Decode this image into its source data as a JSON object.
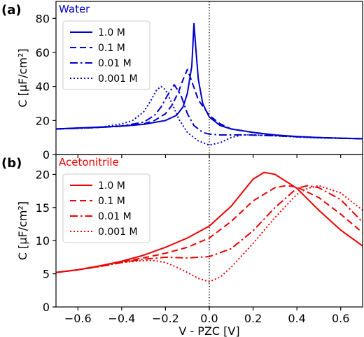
{
  "chart_data": [
    {
      "type": "line",
      "panel_label": "(a)",
      "title": "Water",
      "title_color": "#0000cc",
      "color": "#0000cc",
      "xlim": [
        -0.7,
        0.7
      ],
      "ylim": [
        0,
        90
      ],
      "yticks": [
        0,
        20,
        40,
        60,
        80
      ],
      "xticks": [
        -0.6,
        -0.4,
        -0.2,
        0.0,
        0.2,
        0.4,
        0.6
      ],
      "xticks_labels_visible": false,
      "ylabel": "C [μF/cm²]",
      "vline_x": 0.0,
      "legend_position": "upper-left",
      "series": [
        {
          "name": "1.0 M",
          "style": "solid",
          "x": [
            -0.7,
            -0.6,
            -0.5,
            -0.4,
            -0.3,
            -0.2,
            -0.15,
            -0.12,
            -0.1,
            -0.08,
            -0.07,
            -0.06,
            -0.05,
            -0.03,
            0.0,
            0.05,
            0.1,
            0.2,
            0.3,
            0.4,
            0.5,
            0.6,
            0.7
          ],
          "y": [
            15,
            15.6,
            16.1,
            16.7,
            17.7,
            20,
            23,
            28,
            36,
            52,
            77,
            60,
            44,
            30,
            22,
            17,
            15,
            13,
            11.5,
            10.6,
            10,
            9.6,
            9.3
          ]
        },
        {
          "name": "0.1 M",
          "style": "dashed",
          "x": [
            -0.7,
            -0.6,
            -0.5,
            -0.4,
            -0.3,
            -0.25,
            -0.2,
            -0.17,
            -0.14,
            -0.12,
            -0.1,
            -0.08,
            -0.05,
            0.0,
            0.05,
            0.1,
            0.2,
            0.3,
            0.4,
            0.5,
            0.6,
            0.7
          ],
          "y": [
            15,
            15.5,
            16,
            16.6,
            18,
            20,
            24,
            29,
            37,
            44,
            50,
            43,
            32,
            23,
            18,
            15,
            13,
            11.3,
            10.5,
            10,
            9.6,
            9.3
          ]
        },
        {
          "name": "0.01 M",
          "style": "dashdot",
          "x": [
            -0.7,
            -0.6,
            -0.5,
            -0.4,
            -0.3,
            -0.25,
            -0.22,
            -0.19,
            -0.16,
            -0.13,
            -0.1,
            -0.07,
            -0.03,
            0.0,
            0.05,
            0.1,
            0.15,
            0.2,
            0.3,
            0.4,
            0.5,
            0.6,
            0.7
          ],
          "y": [
            15,
            15.4,
            15.9,
            16.8,
            19,
            23,
            28,
            35,
            41,
            35,
            24,
            17,
            13,
            12,
            11.5,
            11.5,
            11.6,
            11.4,
            11,
            10.4,
            9.9,
            9.5,
            9.3
          ]
        },
        {
          "name": "0.001 M",
          "style": "dotted",
          "x": [
            -0.7,
            -0.6,
            -0.5,
            -0.4,
            -0.35,
            -0.3,
            -0.27,
            -0.24,
            -0.22,
            -0.2,
            -0.17,
            -0.14,
            -0.1,
            -0.05,
            0.0,
            0.05,
            0.1,
            0.15,
            0.2,
            0.3,
            0.4,
            0.5,
            0.6,
            0.7
          ],
          "y": [
            15,
            15.4,
            16,
            18,
            20,
            25,
            31,
            38,
            40,
            38,
            30,
            21,
            13,
            8,
            5.5,
            7,
            10,
            11.5,
            11.6,
            11,
            10.3,
            9.8,
            9.5,
            9.3
          ]
        }
      ]
    },
    {
      "type": "line",
      "panel_label": "(b)",
      "title": "Acetonitrile",
      "title_color": "#ee0000",
      "color": "#ee0000",
      "xlim": [
        -0.7,
        0.7
      ],
      "ylim": [
        0,
        23
      ],
      "yticks": [
        0,
        5,
        10,
        15,
        20
      ],
      "xticks": [
        -0.6,
        -0.4,
        -0.2,
        0.0,
        0.2,
        0.4,
        0.6
      ],
      "xtick_labels": [
        "−0.6",
        "−0.4",
        "−0.2",
        "0.0",
        "0.2",
        "0.4",
        "0.6"
      ],
      "xticks_labels_visible": true,
      "xlabel": "V - PZC [V]",
      "ylabel": "C [μF/cm²]",
      "vline_x": 0.0,
      "legend_position": "upper-left",
      "series": [
        {
          "name": "1.0 M",
          "style": "solid",
          "x": [
            -0.7,
            -0.6,
            -0.5,
            -0.4,
            -0.3,
            -0.2,
            -0.1,
            0.0,
            0.1,
            0.2,
            0.25,
            0.3,
            0.4,
            0.5,
            0.6,
            0.7
          ],
          "y": [
            5.2,
            5.6,
            6.2,
            6.9,
            7.8,
            9,
            10.4,
            12.2,
            15.2,
            19.3,
            20.3,
            20,
            17.9,
            14.6,
            11.6,
            9.2
          ]
        },
        {
          "name": "0.1 M",
          "style": "dashed",
          "x": [
            -0.7,
            -0.6,
            -0.5,
            -0.4,
            -0.3,
            -0.2,
            -0.1,
            0.0,
            0.1,
            0.2,
            0.3,
            0.35,
            0.4,
            0.5,
            0.6,
            0.7
          ],
          "y": [
            5.2,
            5.6,
            6.2,
            6.8,
            7.4,
            8.1,
            9,
            10.4,
            12.9,
            16,
            18,
            18.3,
            18.1,
            16.5,
            14,
            11.2
          ]
        },
        {
          "name": "0.01 M",
          "style": "dashdot",
          "x": [
            -0.7,
            -0.6,
            -0.5,
            -0.4,
            -0.3,
            -0.2,
            -0.1,
            0.0,
            0.1,
            0.2,
            0.3,
            0.4,
            0.45,
            0.5,
            0.6,
            0.7
          ],
          "y": [
            5.2,
            5.6,
            6.1,
            6.7,
            7.2,
            7.5,
            7.4,
            7.6,
            8.8,
            11.5,
            15,
            17.9,
            18.3,
            18,
            16.2,
            12.8
          ]
        },
        {
          "name": "0.001 M",
          "style": "dotted",
          "x": [
            -0.7,
            -0.6,
            -0.5,
            -0.4,
            -0.3,
            -0.25,
            -0.2,
            -0.15,
            -0.1,
            -0.05,
            0.0,
            0.05,
            0.1,
            0.15,
            0.2,
            0.3,
            0.4,
            0.45,
            0.5,
            0.6,
            0.7
          ],
          "y": [
            5.2,
            5.6,
            6.1,
            6.7,
            7,
            7,
            6.7,
            6,
            5.2,
            4.3,
            3.8,
            4.5,
            6,
            7.8,
            9.6,
            13.5,
            17,
            17.9,
            18.3,
            17.2,
            14.6
          ]
        }
      ]
    }
  ]
}
